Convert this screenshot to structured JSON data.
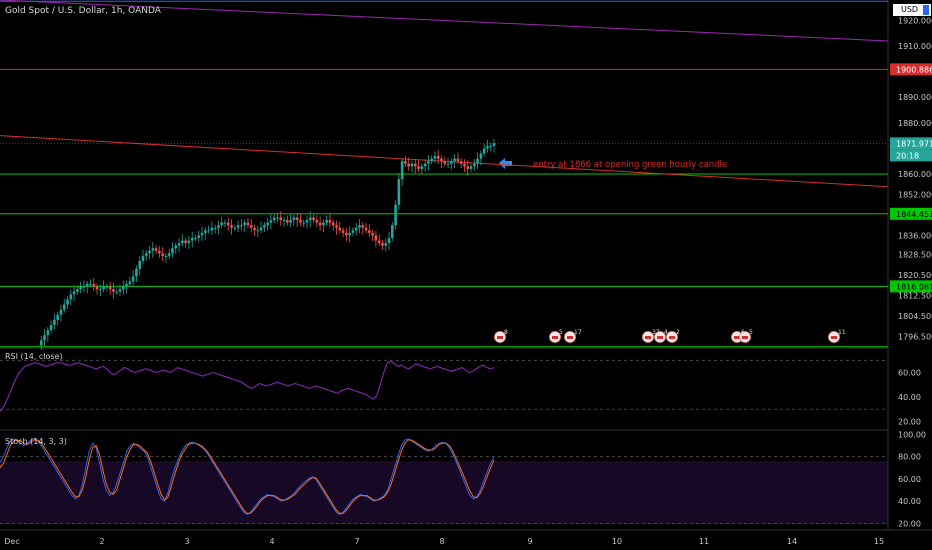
{
  "symbol": {
    "title": "Gold Spot / U.S. Dollar, 1h, OANDA",
    "currency": "USD"
  },
  "annotation": {
    "text": "entry at 1866 at opening green hourly candle"
  },
  "chart_data": [
    {
      "type": "candlestick",
      "title": "Gold Spot / U.S. Dollar, 1h, OANDA",
      "ylim": [
        1792,
        1928
      ],
      "y_ticks": [
        "1920.000",
        "1910.000",
        "1900.000",
        "1890.000",
        "1880.000",
        "1860.000",
        "1852.000",
        "1836.000",
        "1828.500",
        "1820.500",
        "1812.500",
        "1804.500",
        "1796.500"
      ],
      "x_ticks": [
        "Dec",
        "2",
        "3",
        "4",
        "7",
        "8",
        "9",
        "10",
        "11",
        "14",
        "15"
      ],
      "price_labels": [
        {
          "label": "1900.886",
          "value": 1900.886,
          "color": "#d32f2f"
        },
        {
          "label": "1871.971",
          "value": 1871.971,
          "color": "#26a69a"
        },
        {
          "label": "20:18",
          "value": 1867.6,
          "color": "#26a69a"
        },
        {
          "label": "1844.451",
          "value": 1844.451,
          "color": "#00c800"
        },
        {
          "label": "1816.081",
          "value": 1816.081,
          "color": "#00c800"
        }
      ],
      "horizontal_lines": [
        {
          "value": 1927.5,
          "color": "#2962ff"
        },
        {
          "value": 1900.886,
          "color": "#d32f2f"
        },
        {
          "value": 1860.0,
          "color": "#00c800"
        },
        {
          "value": 1844.451,
          "color": "#00c800"
        },
        {
          "value": 1816.081,
          "color": "#00c800"
        },
        {
          "value": 1792.5,
          "color": "#00c800"
        }
      ],
      "trend_lines": [
        {
          "from": [
            0,
            1928
          ],
          "to": [
            130,
            1912
          ],
          "color": "#9c27b0"
        },
        {
          "from": [
            0,
            1875
          ],
          "to": [
            130,
            1855
          ],
          "color": "#d32f2f"
        }
      ],
      "close_path": [
        1793,
        1795,
        1797,
        1799,
        1801,
        1803,
        1805,
        1807,
        1809,
        1811,
        1813,
        1814,
        1815,
        1816,
        1816,
        1817,
        1817,
        1816,
        1815,
        1815,
        1816,
        1816,
        1815,
        1814,
        1814,
        1815,
        1816,
        1817,
        1818,
        1820,
        1823,
        1826,
        1828,
        1829,
        1830,
        1831,
        1830,
        1829,
        1828,
        1828,
        1829,
        1831,
        1832,
        1833,
        1834,
        1833,
        1834,
        1835,
        1835,
        1836,
        1837,
        1838,
        1838,
        1839,
        1839,
        1840,
        1841,
        1841,
        1840,
        1839,
        1839,
        1840,
        1840,
        1841,
        1840,
        1839,
        1838,
        1838,
        1839,
        1840,
        1841,
        1842,
        1843,
        1843,
        1842,
        1842,
        1841,
        1842,
        1843,
        1842,
        1841,
        1841,
        1842,
        1843,
        1842,
        1841,
        1840,
        1841,
        1842,
        1841,
        1840,
        1839,
        1838,
        1837,
        1836,
        1837,
        1838,
        1839,
        1840,
        1839,
        1838,
        1837,
        1836,
        1834,
        1833,
        1832,
        1833,
        1835,
        1840,
        1848,
        1858,
        1865,
        1864,
        1863,
        1864,
        1863,
        1862,
        1863,
        1864,
        1865,
        1866,
        1867,
        1866,
        1865,
        1864,
        1864,
        1865,
        1866,
        1865,
        1864,
        1863,
        1862,
        1863,
        1864,
        1866,
        1868,
        1870,
        1871,
        1871,
        1872
      ],
      "event_markers": [
        {
          "x": "8",
          "label": "8"
        },
        {
          "x": "9",
          "label": "5"
        },
        {
          "x": "9",
          "label": "17"
        },
        {
          "x": "10",
          "label": "37"
        },
        {
          "x": "10",
          "label": "4"
        },
        {
          "x": "10",
          "label": "2"
        },
        {
          "x": "11",
          "label": "6"
        },
        {
          "x": "11",
          "label": "5"
        },
        {
          "x": "14",
          "label": "11"
        }
      ]
    },
    {
      "type": "line",
      "title": "RSI (14, close)",
      "ylim": [
        13,
        80
      ],
      "y_ticks": [
        "60.00",
        "40.00",
        "20.00"
      ],
      "bands": [
        70,
        30
      ],
      "series": [
        {
          "color": "#8e2bbf",
          "values": [
            28,
            32,
            38,
            45,
            52,
            58,
            62,
            65,
            66,
            67,
            68,
            67,
            66,
            65,
            66,
            67,
            68,
            68,
            67,
            66,
            66,
            67,
            68,
            67,
            66,
            65,
            64,
            63,
            64,
            65,
            63,
            60,
            58,
            60,
            62,
            64,
            63,
            61,
            60,
            61,
            62,
            63,
            62,
            61,
            60,
            61,
            62,
            61,
            60,
            62,
            64,
            63,
            62,
            61,
            60,
            59,
            58,
            57,
            58,
            59,
            60,
            59,
            58,
            57,
            56,
            55,
            54,
            53,
            52,
            50,
            48,
            47,
            49,
            51,
            50,
            49,
            50,
            51,
            52,
            51,
            50,
            49,
            50,
            51,
            50,
            49,
            48,
            47,
            48,
            49,
            48,
            47,
            46,
            45,
            44,
            43,
            45,
            46,
            47,
            46,
            45,
            44,
            43,
            42,
            40,
            38,
            41,
            50,
            60,
            68,
            69,
            67,
            65,
            66,
            64,
            63,
            65,
            67,
            66,
            65,
            64,
            63,
            64,
            65,
            64,
            63,
            62,
            61,
            62,
            63,
            64,
            62,
            60,
            61,
            63,
            65,
            66,
            64,
            63,
            64
          ]
        }
      ]
    },
    {
      "type": "line",
      "title": "Stoch (14, 3, 3)",
      "ylim": [
        14,
        104
      ],
      "y_ticks": [
        "100.00",
        "80.00",
        "60.00",
        "40.00",
        "20.00"
      ],
      "bands": [
        80,
        20
      ],
      "series": [
        {
          "color": "#2962ff",
          "values": [
            75,
            80,
            88,
            94,
            96,
            95,
            92,
            90,
            92,
            95,
            96,
            94,
            90,
            85,
            80,
            75,
            70,
            65,
            60,
            55,
            50,
            45,
            42,
            45,
            55,
            70,
            85,
            92,
            88,
            75,
            60,
            50,
            45,
            48,
            55,
            65,
            75,
            85,
            90,
            92,
            90,
            87,
            85,
            80,
            70,
            60,
            50,
            42,
            40,
            48,
            60,
            70,
            78,
            85,
            90,
            92,
            93,
            92,
            90,
            88,
            85,
            80,
            75,
            70,
            65,
            60,
            55,
            50,
            45,
            40,
            35,
            30,
            28,
            30,
            34,
            38,
            42,
            44,
            46,
            45,
            44,
            42,
            40,
            41,
            43,
            45,
            48,
            52,
            55,
            58,
            60,
            62,
            60,
            55,
            50,
            45,
            40,
            35,
            30,
            28,
            30,
            34,
            38,
            42,
            44,
            46,
            45,
            44,
            42,
            40,
            41,
            43,
            45,
            50,
            60,
            70,
            80,
            90,
            95,
            96,
            94,
            92,
            90,
            88,
            86,
            85,
            87,
            90,
            92,
            93,
            92,
            88,
            82,
            75,
            68,
            60,
            52,
            45,
            42,
            44,
            50,
            58,
            66,
            74,
            80
          ]
        },
        {
          "color": "#ff6d00",
          "values": [
            70,
            74,
            82,
            90,
            94,
            95,
            94,
            92,
            91,
            93,
            95,
            95,
            92,
            88,
            83,
            78,
            73,
            68,
            63,
            58,
            53,
            48,
            44,
            44,
            50,
            62,
            77,
            88,
            90,
            82,
            68,
            55,
            48,
            46,
            50,
            60,
            70,
            80,
            87,
            91,
            91,
            89,
            86,
            83,
            75,
            65,
            55,
            46,
            41,
            44,
            54,
            65,
            74,
            82,
            87,
            91,
            92,
            92,
            91,
            89,
            86,
            82,
            77,
            72,
            67,
            62,
            57,
            52,
            47,
            42,
            37,
            32,
            29,
            29,
            32,
            36,
            40,
            43,
            45,
            45,
            45,
            43,
            41,
            41,
            42,
            44,
            46,
            50,
            53,
            56,
            59,
            61,
            61,
            57,
            52,
            47,
            42,
            37,
            32,
            29,
            29,
            32,
            36,
            40,
            43,
            45,
            45,
            45,
            43,
            41,
            41,
            42,
            44,
            48,
            55,
            65,
            75,
            85,
            92,
            95,
            95,
            93,
            91,
            89,
            87,
            86,
            86,
            88,
            91,
            92,
            92,
            90,
            85,
            78,
            71,
            64,
            56,
            49,
            44,
            43,
            47,
            54,
            62,
            70,
            77
          ]
        }
      ]
    }
  ]
}
